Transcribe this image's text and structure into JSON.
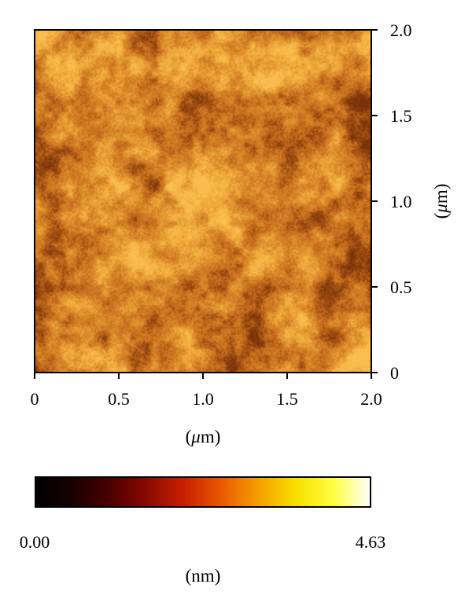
{
  "chart_data": {
    "type": "heatmap",
    "x": {
      "ticks": [
        "0",
        "0.5",
        "1.0",
        "1.5",
        "2.0"
      ],
      "values": [
        0,
        0.5,
        1.0,
        1.5,
        2.0
      ],
      "range": [
        0,
        2.0
      ],
      "unit": "μm"
    },
    "y": {
      "ticks": [
        "0",
        "0.5",
        "1.0",
        "1.5",
        "2.0"
      ],
      "values": [
        0,
        0.5,
        1.0,
        1.5,
        2.0
      ],
      "range": [
        0,
        2.0
      ],
      "unit": "μm",
      "side": "right"
    },
    "xlabel": {
      "open": "(",
      "italic": "μ",
      "rest": "m)"
    },
    "ylabel": {
      "open": "(",
      "italic": "μ",
      "rest": "m)"
    },
    "colorbar": {
      "min_label": "0.00",
      "max_label": "4.63",
      "min": 0.0,
      "max": 4.63,
      "unit_label": "(nm)",
      "stops": [
        "#000000",
        "#1a0000",
        "#4a0000",
        "#8a0a00",
        "#c82000",
        "#e85a00",
        "#f5a000",
        "#f8e000",
        "#ffff40",
        "#ffffff"
      ]
    },
    "image_mean_fraction": 0.55,
    "palette": {
      "dark": "#9a4a10",
      "mid": "#d98a2a",
      "light": "#f5b040"
    }
  }
}
